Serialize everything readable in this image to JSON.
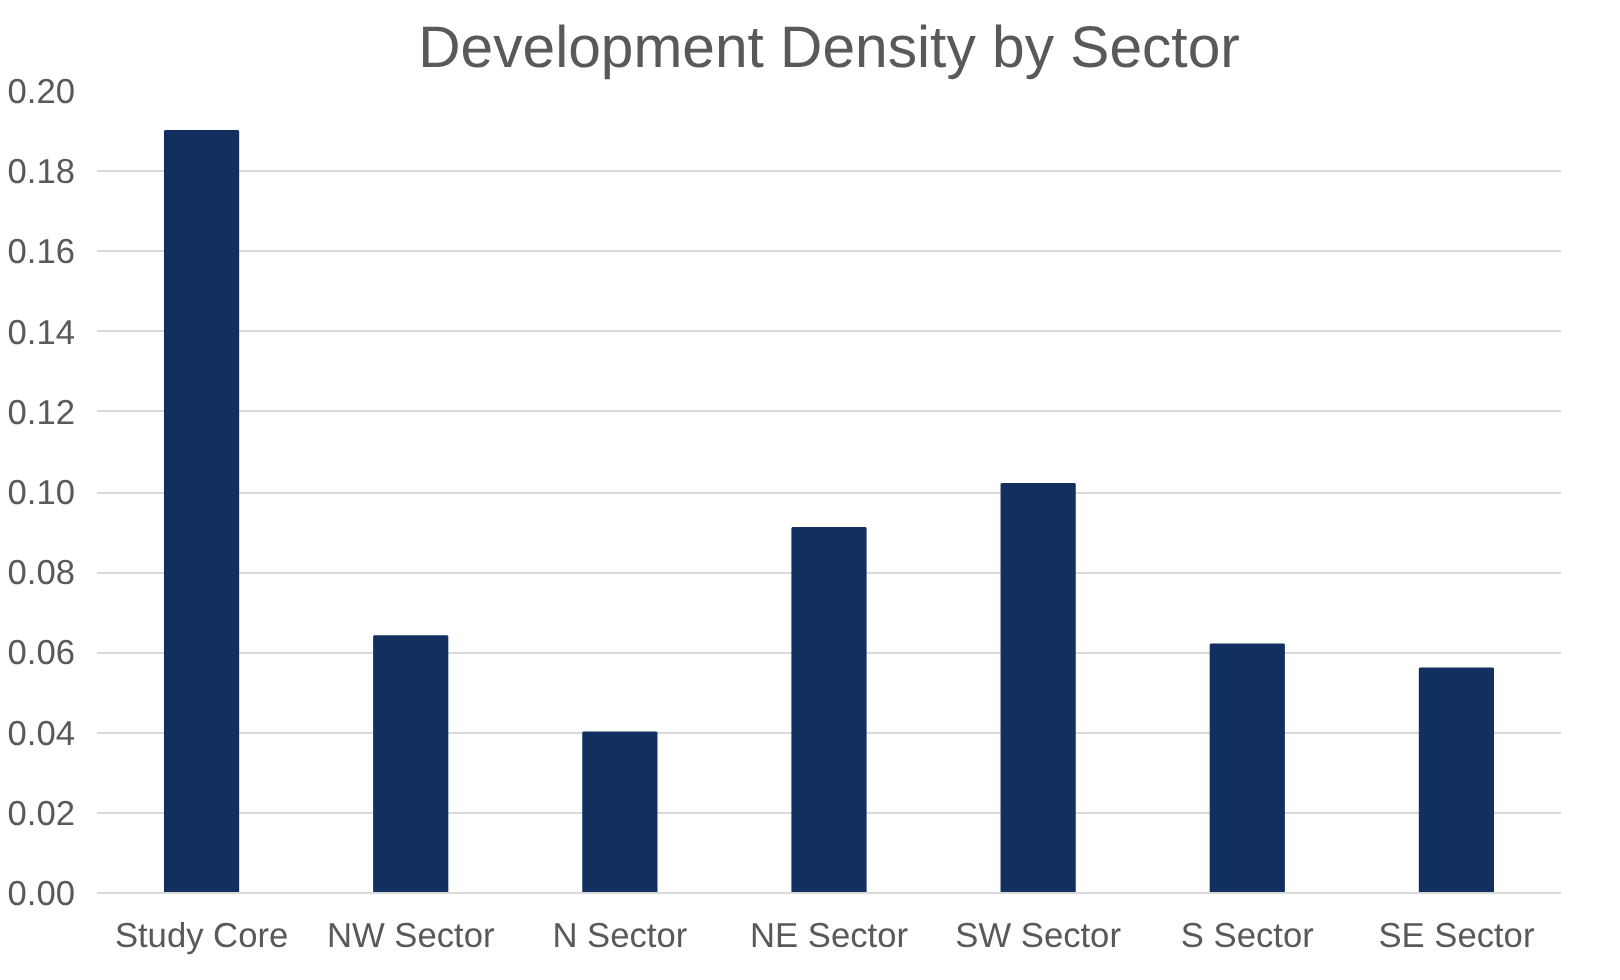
{
  "chart_data": {
    "type": "bar",
    "title": "Development Density by Sector",
    "categories": [
      "Study Core",
      "NW Sector",
      "N Sector",
      "NE Sector",
      "SW Sector",
      "S Sector",
      "SE Sector"
    ],
    "values": [
      0.19,
      0.064,
      0.04,
      0.091,
      0.102,
      0.062,
      0.056
    ],
    "color": "#12305f",
    "ylim": [
      0,
      0.2
    ],
    "yticks": [
      {
        "value": 0,
        "label": "0.00"
      },
      {
        "value": 0.02,
        "label": "0.02"
      },
      {
        "value": 0.04,
        "label": "0.04"
      },
      {
        "value": 0.06,
        "label": "0.06"
      },
      {
        "value": 0.08,
        "label": "0.08"
      },
      {
        "value": 0.1,
        "label": "0.10"
      },
      {
        "value": 0.12,
        "label": "0.12"
      },
      {
        "value": 0.14,
        "label": "0.14"
      },
      {
        "value": 0.16,
        "label": "0.16"
      },
      {
        "value": 0.18,
        "label": "0.18"
      },
      {
        "value": 0.2,
        "label": "0.20"
      }
    ],
    "grid": "y"
  }
}
